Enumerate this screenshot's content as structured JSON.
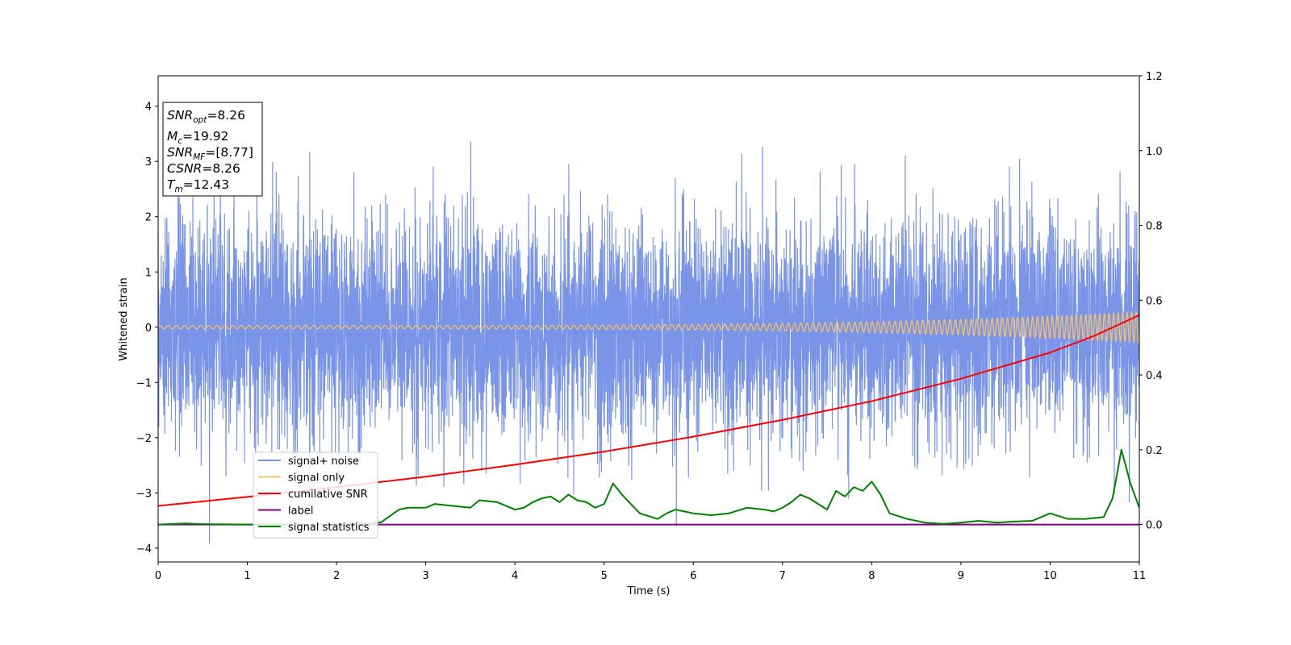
{
  "chart_data": {
    "type": "line",
    "title": "",
    "xlabel": "Time (s)",
    "ylabel": "Whitened strain",
    "y2label": "",
    "xlim": [
      0,
      11
    ],
    "ylim": [
      -4.25,
      4.55
    ],
    "y2lim": [
      -0.1,
      1.2
    ],
    "xticks": [
      0,
      1,
      2,
      3,
      4,
      5,
      6,
      7,
      8,
      9,
      10,
      11
    ],
    "yticks": [
      4,
      3,
      2,
      1,
      0,
      -1,
      -2,
      -3,
      -4
    ],
    "y2ticks": [
      "1.2",
      "1.0",
      "0.8",
      "0.6",
      "0.4",
      "0.2",
      "0.0"
    ],
    "grid": false,
    "legend_position": "lower-left",
    "annotation": {
      "snr_opt": {
        "base": "SNR",
        "sub": "opt",
        "value": "=8.26"
      },
      "mc": {
        "base": "M",
        "sub": "c",
        "value": "=19.92"
      },
      "snr_mf": {
        "base": "SNR",
        "sub": "MF",
        "value": "=[8.77]"
      },
      "csnr": {
        "base": "CSNR",
        "value": "=8.26"
      },
      "tm": {
        "base": "T",
        "sub": "m",
        "value": "=12.43"
      }
    },
    "series": [
      {
        "name": "signal+ noise",
        "axis": "left",
        "color": "#7a95e8",
        "description_values": "noise envelope, std 1.0, mean 0.0",
        "noise_std": 1.0
      },
      {
        "name": "signal only",
        "axis": "left",
        "color": "#f5c26b",
        "amplitude_start": 0.03,
        "amplitude_end": 0.28,
        "chirp": true
      },
      {
        "name": "cumilative SNR",
        "axis": "right",
        "color": "#ff0000",
        "x": [
          0,
          1,
          2,
          3,
          4,
          5,
          6,
          7,
          8,
          9,
          10,
          10.5,
          11
        ],
        "y": [
          0.05,
          0.074,
          0.1,
          0.128,
          0.16,
          0.195,
          0.235,
          0.28,
          0.33,
          0.39,
          0.46,
          0.505,
          0.56
        ]
      },
      {
        "name": "label",
        "axis": "right",
        "color": "#800080",
        "x": [
          0,
          11
        ],
        "y": [
          0.0,
          0.0
        ]
      },
      {
        "name": "signal statistics",
        "axis": "right",
        "color": "#008000",
        "x": [
          0,
          0.3,
          0.5,
          1.0,
          1.5,
          2.0,
          2.3,
          2.5,
          2.7,
          2.8,
          3.0,
          3.1,
          3.3,
          3.5,
          3.6,
          3.8,
          4.0,
          4.1,
          4.2,
          4.3,
          4.4,
          4.5,
          4.6,
          4.7,
          4.8,
          4.9,
          5.0,
          5.1,
          5.2,
          5.4,
          5.6,
          5.7,
          5.8,
          5.9,
          6.0,
          6.2,
          6.4,
          6.6,
          6.8,
          6.9,
          7.0,
          7.1,
          7.2,
          7.3,
          7.4,
          7.5,
          7.6,
          7.7,
          7.8,
          7.9,
          8.0,
          8.1,
          8.2,
          8.4,
          8.6,
          8.8,
          9.0,
          9.2,
          9.4,
          9.6,
          9.8,
          10.0,
          10.2,
          10.4,
          10.6,
          10.7,
          10.8,
          10.9,
          11.0
        ],
        "y": [
          0.0,
          0.003,
          0.001,
          0.0,
          0.0,
          0.0,
          0.003,
          0.006,
          0.04,
          0.045,
          0.045,
          0.055,
          0.05,
          0.045,
          0.065,
          0.06,
          0.04,
          0.045,
          0.06,
          0.07,
          0.075,
          0.06,
          0.08,
          0.065,
          0.06,
          0.045,
          0.055,
          0.11,
          0.08,
          0.03,
          0.015,
          0.03,
          0.04,
          0.035,
          0.03,
          0.025,
          0.03,
          0.045,
          0.04,
          0.035,
          0.045,
          0.06,
          0.08,
          0.07,
          0.055,
          0.04,
          0.09,
          0.075,
          0.1,
          0.09,
          0.115,
          0.08,
          0.03,
          0.015,
          0.005,
          0.002,
          0.005,
          0.01,
          0.005,
          0.008,
          0.01,
          0.03,
          0.015,
          0.015,
          0.02,
          0.07,
          0.2,
          0.11,
          0.045
        ]
      }
    ]
  }
}
